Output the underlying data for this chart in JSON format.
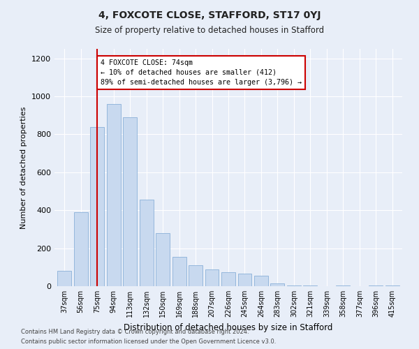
{
  "title": "4, FOXCOTE CLOSE, STAFFORD, ST17 0YJ",
  "subtitle": "Size of property relative to detached houses in Stafford",
  "xlabel": "Distribution of detached houses by size in Stafford",
  "ylabel": "Number of detached properties",
  "categories": [
    "37sqm",
    "56sqm",
    "75sqm",
    "94sqm",
    "113sqm",
    "132sqm",
    "150sqm",
    "169sqm",
    "188sqm",
    "207sqm",
    "226sqm",
    "245sqm",
    "264sqm",
    "283sqm",
    "302sqm",
    "321sqm",
    "339sqm",
    "358sqm",
    "377sqm",
    "396sqm",
    "415sqm"
  ],
  "values": [
    80,
    390,
    840,
    960,
    890,
    455,
    280,
    155,
    110,
    90,
    75,
    65,
    55,
    15,
    5,
    5,
    0,
    5,
    0,
    5,
    5
  ],
  "bar_color": "#c8d9ef",
  "bar_edge_color": "#8ab0d8",
  "vline_x_index": 2,
  "vline_color": "#cc0000",
  "annotation_text": "4 FOXCOTE CLOSE: 74sqm\n← 10% of detached houses are smaller (412)\n89% of semi-detached houses are larger (3,796) →",
  "annotation_box_color": "#ffffff",
  "annotation_box_edge": "#cc0000",
  "ylim": [
    0,
    1250
  ],
  "yticks": [
    0,
    200,
    400,
    600,
    800,
    1000,
    1200
  ],
  "footer1": "Contains HM Land Registry data © Crown copyright and database right 2024.",
  "footer2": "Contains public sector information licensed under the Open Government Licence v3.0.",
  "bg_color": "#e8eef8",
  "plot_bg_color": "#e8eef8"
}
